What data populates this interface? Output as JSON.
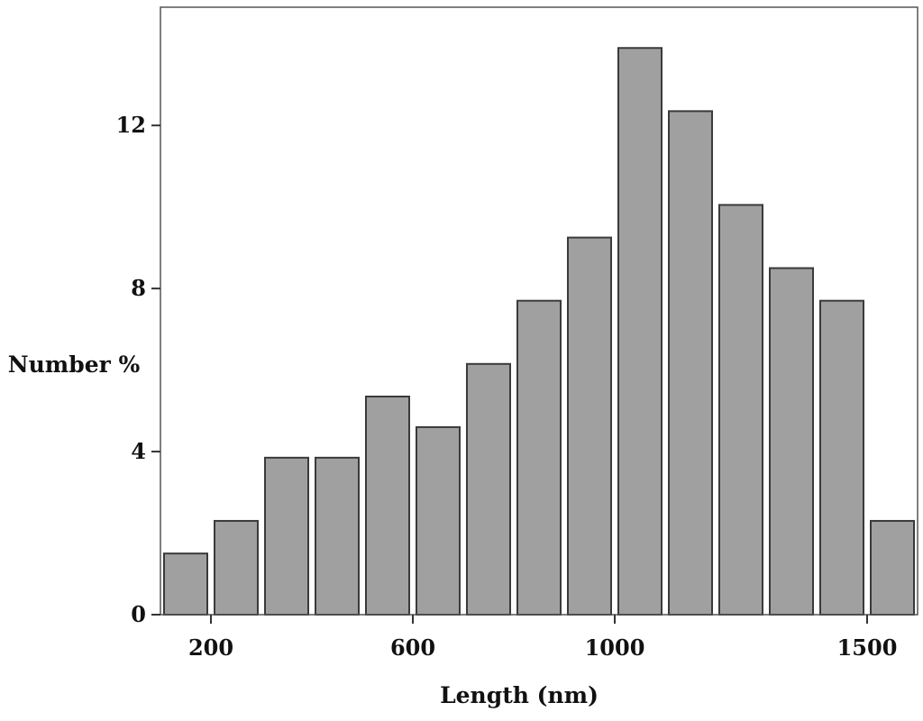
{
  "chart_data": {
    "type": "bar",
    "title": "",
    "xlabel": "Length (nm)",
    "ylabel": "Number %",
    "bin_width": 100,
    "x": [
      150,
      250,
      350,
      450,
      550,
      650,
      750,
      850,
      950,
      1050,
      1150,
      1250,
      1350,
      1450,
      1550
    ],
    "values": [
      1.5,
      2.3,
      3.85,
      3.85,
      5.35,
      4.6,
      6.15,
      7.7,
      9.25,
      13.9,
      12.35,
      10.05,
      8.5,
      7.7,
      2.3
    ],
    "xlim": [
      100,
      1600
    ],
    "ylim": [
      0,
      14.9
    ],
    "xticks": [
      200,
      600,
      1000,
      1500
    ],
    "yticks": [
      0,
      4,
      8,
      12
    ],
    "grid": false,
    "bar_color": "#a0a0a0",
    "edge_color": "#3a3a3a"
  }
}
